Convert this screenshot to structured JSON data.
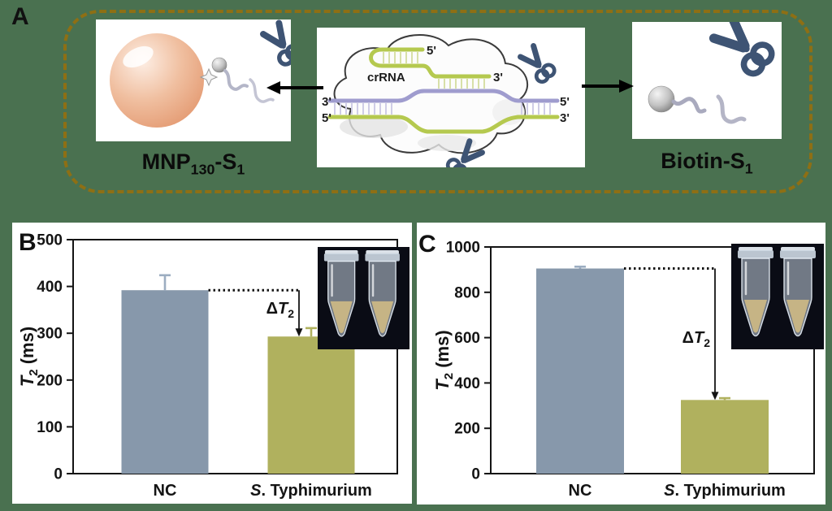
{
  "colors": {
    "background": "#4a7150",
    "panel_a_border": "#8e6f14",
    "scissors": "#3e5474",
    "strand_purple": "#9f9cce",
    "crrna_green": "#b5c94f",
    "mnp_sphere": "#f0bfa0",
    "axis": "#141414",
    "inset_background": "#0a0c15",
    "tube_liquid": "#c6b485"
  },
  "panel_a": {
    "letter": "A",
    "left_label": {
      "main": "MNP",
      "sub1": "130",
      "mid": "-S",
      "sub2": "1"
    },
    "right_label": {
      "main": "Biotin-S",
      "sub": "1"
    },
    "center": {
      "crrna": "crRNA",
      "hairpin_5": "5'",
      "crrna_3": "3'",
      "left_3": "3'",
      "left_5": "5'",
      "right_5": "5'",
      "right_3": "3'"
    }
  },
  "chart_data": [
    {
      "type": "bar",
      "panel": "B",
      "categories": [
        "NC",
        "S. Typhimurium"
      ],
      "categories_rich": [
        {
          "italic": "",
          "text": "NC"
        },
        {
          "italic": "S",
          "text": ". Typhimurium"
        }
      ],
      "values": [
        392,
        293
      ],
      "errors": [
        32,
        18
      ],
      "bar_colors": [
        "#8798ab",
        "#b0b15e"
      ],
      "error_colors": [
        "#9cadc1",
        "#b0b15e"
      ],
      "ylabel": "T2 (ms)",
      "ylabel_parts": {
        "symbol": "T",
        "sub": "2",
        "unit": "(ms)"
      },
      "ylim": [
        0,
        500
      ],
      "yticks": [
        0,
        100,
        200,
        300,
        400,
        500
      ],
      "annotation": "ΔT2",
      "annotation_parts": {
        "prefix": "Δ",
        "symbol": "T",
        "sub": "2"
      },
      "grid": false,
      "legend": "none",
      "inset": "photo of two microcentrifuge tubes"
    },
    {
      "type": "bar",
      "panel": "C",
      "categories": [
        "NC",
        "S. Typhimurium"
      ],
      "categories_rich": [
        {
          "italic": "",
          "text": "NC"
        },
        {
          "italic": "S",
          "text": ". Typhimurium"
        }
      ],
      "values": [
        905,
        325
      ],
      "errors": [
        8,
        8
      ],
      "bar_colors": [
        "#8798ab",
        "#b0b15e"
      ],
      "error_colors": [
        "#9cadc1",
        "#b0b15e"
      ],
      "ylabel": "T2 (ms)",
      "ylabel_parts": {
        "symbol": "T",
        "sub": "2",
        "unit": "(ms)"
      },
      "ylim": [
        0,
        1000
      ],
      "yticks": [
        0,
        200,
        400,
        600,
        800,
        1000
      ],
      "annotation": "ΔT2",
      "annotation_parts": {
        "prefix": "Δ",
        "symbol": "T",
        "sub": "2"
      },
      "grid": false,
      "legend": "none",
      "inset": "photo of two microcentrifuge tubes"
    }
  ]
}
